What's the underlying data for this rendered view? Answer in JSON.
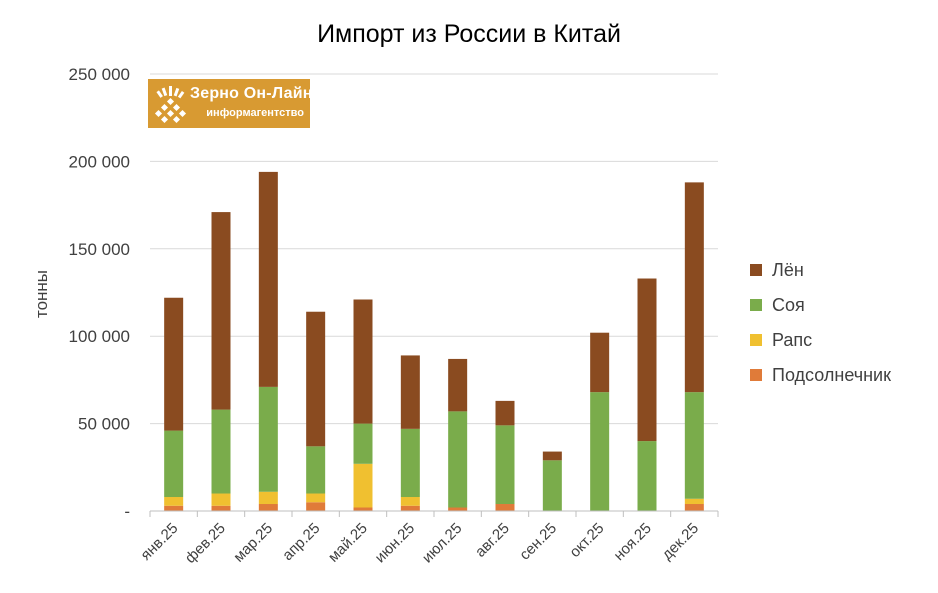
{
  "chart_data": {
    "type": "bar",
    "stacked": true,
    "title": "Импорт из России в Китай",
    "ylabel": "тонны",
    "xlabel": "",
    "ylim": [
      0,
      250000
    ],
    "yticks": [
      0,
      50000,
      100000,
      150000,
      200000,
      250000
    ],
    "ytick_labels": [
      "-",
      "50 000",
      "100 000",
      "150 000",
      "200 000",
      "250 000"
    ],
    "grid": true,
    "legend_position": "right",
    "categories": [
      "янв.25",
      "фев.25",
      "мар.25",
      "апр.25",
      "май.25",
      "июн.25",
      "июл.25",
      "авг.25",
      "сен.25",
      "окт.25",
      "ноя.25",
      "дек.25"
    ],
    "series": [
      {
        "name": "Подсолнечник",
        "color": "#e07b39",
        "values": [
          3000,
          3000,
          4000,
          5000,
          2000,
          3000,
          2000,
          4000,
          0,
          0,
          0,
          4000
        ]
      },
      {
        "name": "Рапс",
        "color": "#f0c030",
        "values": [
          5000,
          7000,
          7000,
          5000,
          25000,
          5000,
          0,
          0,
          0,
          0,
          0,
          3000
        ]
      },
      {
        "name": "Соя",
        "color": "#7aac4b",
        "values": [
          38000,
          48000,
          60000,
          27000,
          23000,
          39000,
          55000,
          45000,
          29000,
          68000,
          40000,
          61000
        ]
      },
      {
        "name": "Лён",
        "color": "#8a4b20",
        "values": [
          76000,
          113000,
          123000,
          77000,
          71000,
          42000,
          30000,
          14000,
          5000,
          34000,
          93000,
          120000
        ]
      }
    ],
    "legend_order": [
      "Лён",
      "Соя",
      "Рапс",
      "Подсолнечник"
    ]
  },
  "logo": {
    "name": "Зерно Он-Лайн",
    "subtitle": "информагентство"
  }
}
